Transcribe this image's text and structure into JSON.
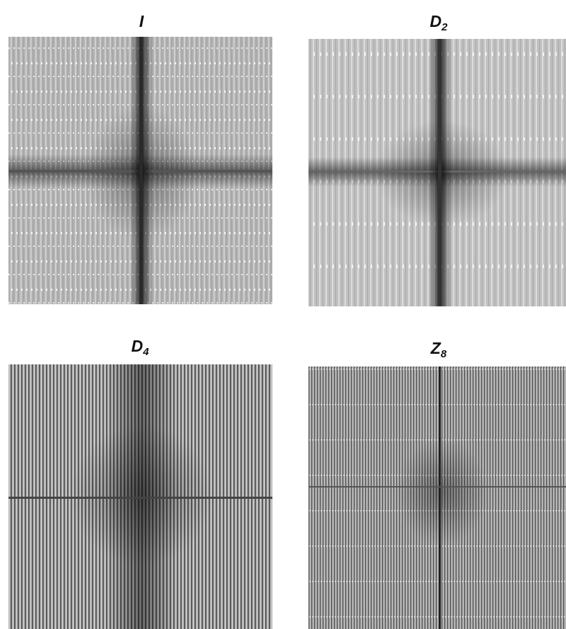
{
  "panels": [
    {
      "title": "I"
    },
    {
      "title": "D",
      "subscript": "2"
    },
    {
      "title": "D",
      "subscript": "4"
    },
    {
      "title": "Z",
      "subscript": "8"
    }
  ]
}
